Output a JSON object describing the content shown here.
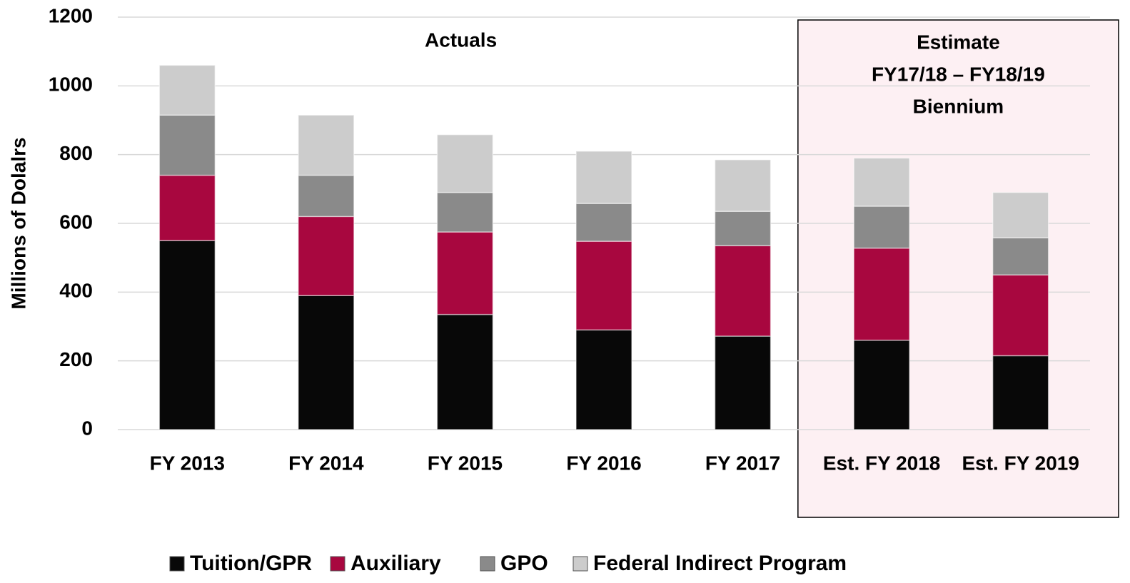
{
  "chart_data": {
    "type": "stacked_bar",
    "y_label": "Millions of Dolalrs",
    "annotations": [
      "Actuals",
      [
        "Estimate",
        "FY17/18 – FY18/19",
        "Biennium"
      ]
    ],
    "categories": [
      "FY 2013",
      "FY 2014",
      "FY 2015",
      "FY 2016",
      "FY 2017",
      "Est. FY 2018",
      "Est. FY 2019"
    ],
    "series": [
      {
        "name": "Tuition/GPR",
        "color": "#080808",
        "values": [
          550,
          390,
          335,
          290,
          272,
          260,
          215
        ]
      },
      {
        "name": "Auxiliary",
        "color": "#a8073f",
        "values": [
          190,
          230,
          240,
          258,
          263,
          268,
          235
        ]
      },
      {
        "name": "GPO",
        "color": "#8a8a8a",
        "values": [
          175,
          120,
          115,
          110,
          100,
          122,
          108
        ]
      },
      {
        "name": "Federal Indirect Program",
        "color": "#cccccc",
        "values": [
          145,
          175,
          168,
          152,
          150,
          140,
          132
        ]
      }
    ],
    "ylim": [
      0,
      1200
    ],
    "yticks": [
      0,
      200,
      400,
      600,
      800,
      1000,
      1200
    ],
    "grid": true,
    "legend": "bottom"
  }
}
